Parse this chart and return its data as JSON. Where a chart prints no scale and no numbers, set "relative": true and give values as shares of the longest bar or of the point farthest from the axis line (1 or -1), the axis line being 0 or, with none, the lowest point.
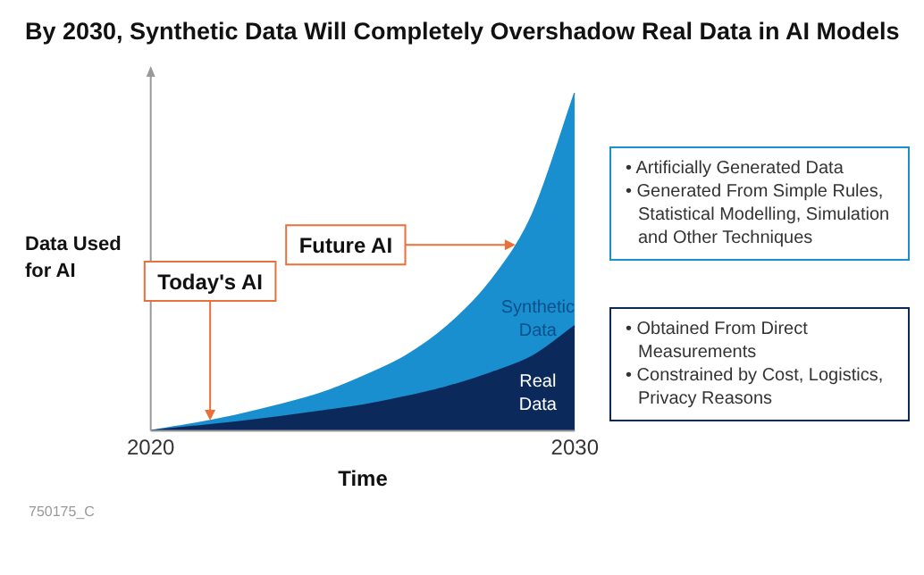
{
  "chart_data": {
    "type": "area",
    "title": "By 2030,  Synthetic Data Will Completely Overshadow Real Data in AI Models",
    "xlabel": "Time",
    "ylabel": "Data Used for AI",
    "relative": true,
    "stacked": true,
    "x": [
      2020,
      2021,
      2022,
      2023,
      2024,
      2025,
      2026,
      2027,
      2028,
      2029,
      2030
    ],
    "xlim": [
      2020,
      2030
    ],
    "xticks": [
      2020,
      2030
    ],
    "tick_labels": "x",
    "grid": false,
    "legend": false,
    "series": [
      {
        "name": "Real Data",
        "color": "#0b2a5b",
        "values": [
          0,
          0.012,
          0.025,
          0.04,
          0.057,
          0.075,
          0.1,
          0.13,
          0.17,
          0.22,
          0.31
        ]
      },
      {
        "name": "Synthetic Data",
        "color": "#1a8fd0",
        "values": [
          0,
          0.008,
          0.02,
          0.035,
          0.053,
          0.085,
          0.12,
          0.18,
          0.27,
          0.42,
          0.69
        ]
      }
    ],
    "annotations": [
      {
        "text": "Today's AI",
        "x": 2021.4,
        "y": 0.03
      },
      {
        "text": "Future AI",
        "x": 2028.6,
        "y": 0.55
      },
      "• Artificially Generated Data\n• Generated From Simple Rules, Statistical Modelling, Simulation and Other Techniques",
      "• Obtained From Direct Measurements\n• Constrained by Cost, Logistics, Privacy Reasons",
      "750175_C"
    ]
  }
}
